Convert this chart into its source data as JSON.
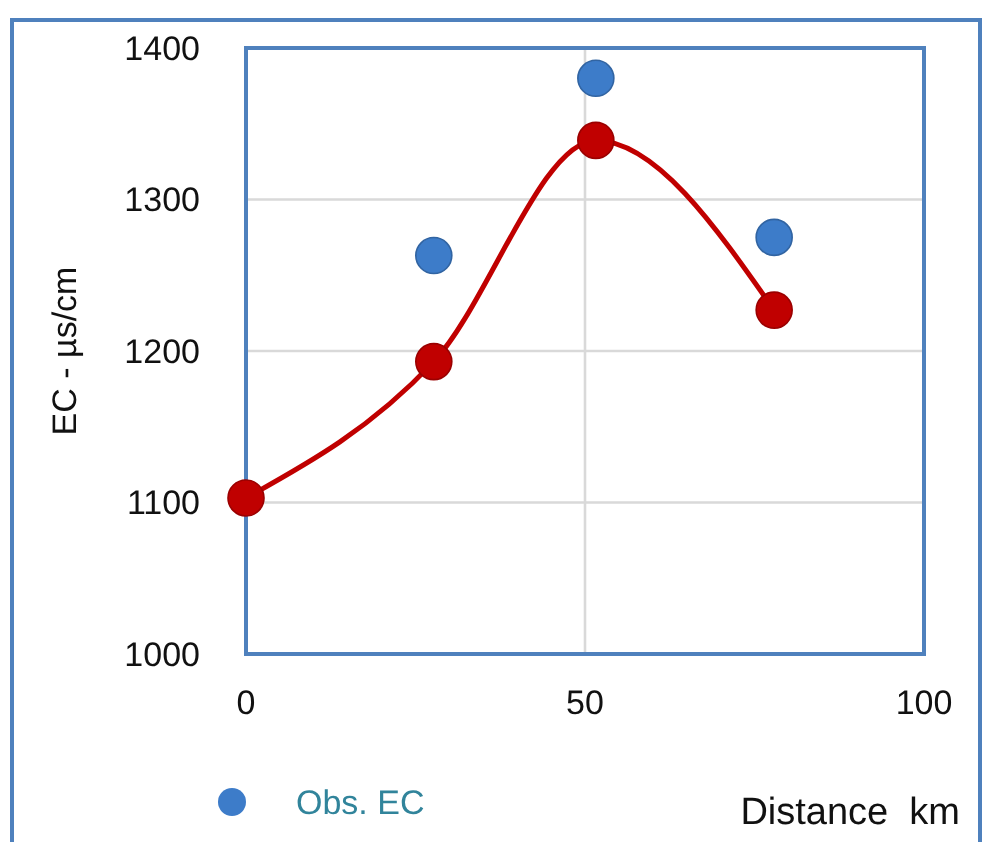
{
  "chart_data": {
    "type": "scatter",
    "xlabel": "Distance  km",
    "ylabel": "EC - µs/cm",
    "xlim": [
      0,
      100
    ],
    "xticks": [
      0,
      50,
      100
    ],
    "ylim": [
      1000,
      1400
    ],
    "yticks": [
      1000,
      1100,
      1200,
      1300,
      1400
    ],
    "grid": true,
    "legend": "bottom",
    "marker": "circle",
    "series": [
      {
        "name": "Obs. EC",
        "color": "#3d7cc9",
        "x": [
          27.7,
          51.6,
          77.9
        ],
        "values": [
          1263,
          1380,
          1275
        ]
      },
      {
        "type": "line",
        "color": "#c00000",
        "x": [
          0,
          27.7,
          51.6,
          77.9
        ],
        "values": [
          1103,
          1193,
          1339,
          1227
        ]
      }
    ]
  }
}
